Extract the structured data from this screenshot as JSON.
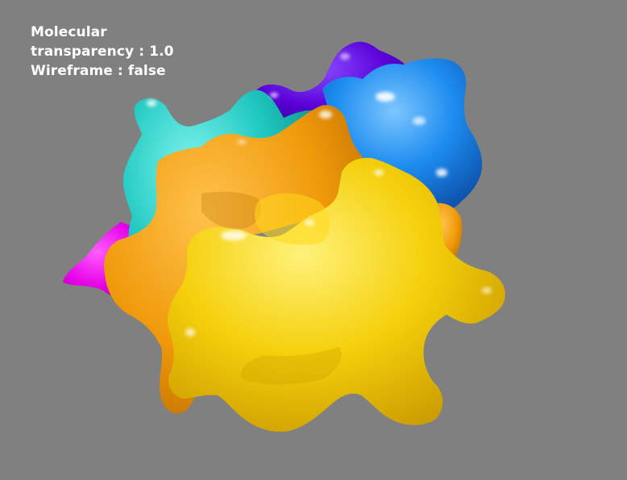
{
  "scene": {
    "background_color": "#808080",
    "subject": "molecular-surface",
    "colors": {
      "magenta": "#e600e6",
      "turquoise": "#1ec7c0",
      "violet": "#5a00d8",
      "blue": "#1d7ee8",
      "orange": "#f09a0a",
      "yellow": "#f3c807"
    }
  },
  "hud": {
    "line1": "Molecular",
    "line2_label": "transparency",
    "line2_sep": " : ",
    "line2_value": "1.0",
    "line3_label": "Wireframe",
    "line3_sep": " : ",
    "line3_value": "false"
  }
}
